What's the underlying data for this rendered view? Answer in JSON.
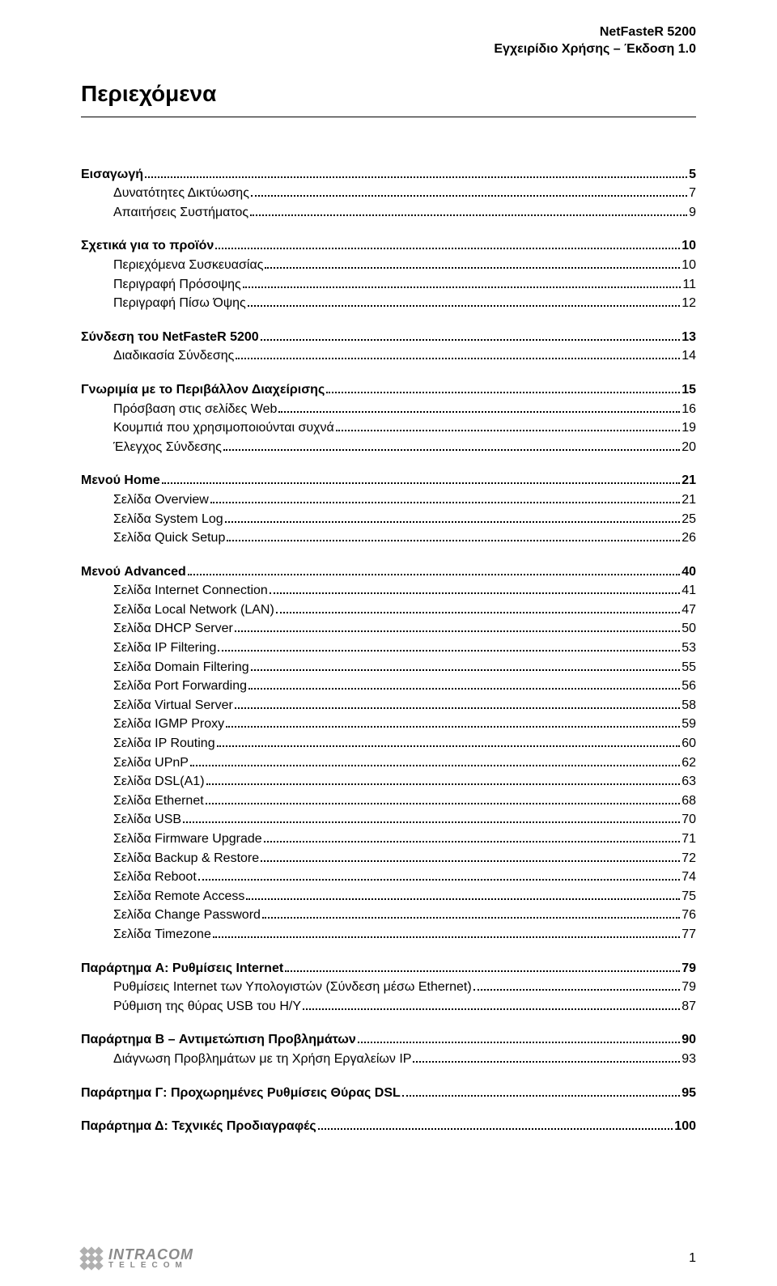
{
  "header": {
    "product": "NetFasteR 5200",
    "subtitle": "Εγχειρίδιο Χρήσης – Έκδοση 1.0"
  },
  "title": "Περιεχόμενα",
  "toc": [
    {
      "type": "section",
      "label": "Εισαγωγή",
      "page": "5"
    },
    {
      "type": "sub",
      "label": "Δυνατότητες Δικτύωσης",
      "page": "7"
    },
    {
      "type": "sub",
      "label": "Απαιτήσεις Συστήματος",
      "page": "9"
    },
    {
      "type": "section",
      "label": "Σχετικά για το προϊόν",
      "page": "10"
    },
    {
      "type": "sub",
      "label": "Περιεχόμενα Συσκευασίας",
      "page": "10"
    },
    {
      "type": "sub",
      "label": "Περιγραφή Πρόσοψης",
      "page": "11"
    },
    {
      "type": "sub",
      "label": "Περιγραφή Πίσω Όψης",
      "page": "12"
    },
    {
      "type": "section",
      "label": "Σύνδεση του NetFasteR 5200",
      "page": "13"
    },
    {
      "type": "sub",
      "label": "Διαδικασία Σύνδεσης",
      "page": "14"
    },
    {
      "type": "section",
      "label": "Γνωριμία με το Περιβάλλον Διαχείρισης",
      "page": "15"
    },
    {
      "type": "sub",
      "label": "Πρόσβαση στις σελίδες Web",
      "page": "16"
    },
    {
      "type": "sub",
      "label": "Κουμπιά που χρησιμοποιούνται συχνά",
      "page": "19"
    },
    {
      "type": "sub",
      "label": "Έλεγχος Σύνδεσης",
      "page": "20"
    },
    {
      "type": "section",
      "label": "Μενού Home",
      "page": "21"
    },
    {
      "type": "sub",
      "label": "Σελίδα Overview",
      "page": "21"
    },
    {
      "type": "sub",
      "label": "Σελίδα System Log",
      "page": "25"
    },
    {
      "type": "sub",
      "label": "Σελίδα Quick Setup",
      "page": "26"
    },
    {
      "type": "section",
      "label": "Μενού Advanced",
      "page": "40"
    },
    {
      "type": "sub",
      "label": "Σελίδα Internet Connection",
      "page": "41"
    },
    {
      "type": "sub",
      "label": "Σελίδα Local Network (LAN)",
      "page": "47"
    },
    {
      "type": "sub",
      "label": "Σελίδα DHCP Server",
      "page": "50"
    },
    {
      "type": "sub",
      "label": "Σελίδα IP Filtering",
      "page": "53"
    },
    {
      "type": "sub",
      "label": "Σελίδα Domain Filtering",
      "page": "55"
    },
    {
      "type": "sub",
      "label": "Σελίδα Port Forwarding",
      "page": "56"
    },
    {
      "type": "sub",
      "label": "Σελίδα Virtual Server",
      "page": "58"
    },
    {
      "type": "sub",
      "label": "Σελίδα IGMP Proxy",
      "page": "59"
    },
    {
      "type": "sub",
      "label": "Σελίδα IP Routing",
      "page": "60"
    },
    {
      "type": "sub",
      "label": "Σελίδα UPnP",
      "page": "62"
    },
    {
      "type": "sub",
      "label": "Σελίδα DSL(A1)",
      "page": "63"
    },
    {
      "type": "sub",
      "label": "Σελίδα Ethernet",
      "page": "68"
    },
    {
      "type": "sub",
      "label": "Σελίδα USB",
      "page": "70"
    },
    {
      "type": "sub",
      "label": "Σελίδα Firmware Upgrade",
      "page": "71"
    },
    {
      "type": "sub",
      "label": "Σελίδα Backup & Restore",
      "page": "72"
    },
    {
      "type": "sub",
      "label": "Σελίδα Reboot",
      "page": "74"
    },
    {
      "type": "sub",
      "label": "Σελίδα Remote Access",
      "page": "75"
    },
    {
      "type": "sub",
      "label": "Σελίδα Change Password",
      "page": "76"
    },
    {
      "type": "sub",
      "label": "Σελίδα Timezone",
      "page": "77"
    },
    {
      "type": "section",
      "label": "Παράρτημα A: Ρυθμίσεις Internet",
      "page": "79"
    },
    {
      "type": "sub",
      "label": "Ρυθμίσεις Internet των Υπολογιστών (Σύνδεση μέσω Ethernet)",
      "page": "79"
    },
    {
      "type": "sub",
      "label": "Ρύθμιση της θύρας USB του Η/Υ",
      "page": "87"
    },
    {
      "type": "section",
      "label": "Παράρτημα B – Αντιμετώπιση Προβλημάτων",
      "page": "90"
    },
    {
      "type": "sub",
      "label": "Διάγνωση Προβλημάτων με τη Χρήση Εργαλείων ΙΡ",
      "page": "93"
    },
    {
      "type": "section",
      "label": "Παράρτημα Γ: Προχωρημένες Ρυθμίσεις Θύρας DSL",
      "page": "95"
    },
    {
      "type": "section",
      "label": "Παράρτημα Δ: Τεχνικές Προδιαγραφές",
      "page": "100"
    }
  ],
  "footer": {
    "logo": {
      "line1": "INTRACOM",
      "line2": "TELECOM"
    },
    "page_number": "1"
  }
}
